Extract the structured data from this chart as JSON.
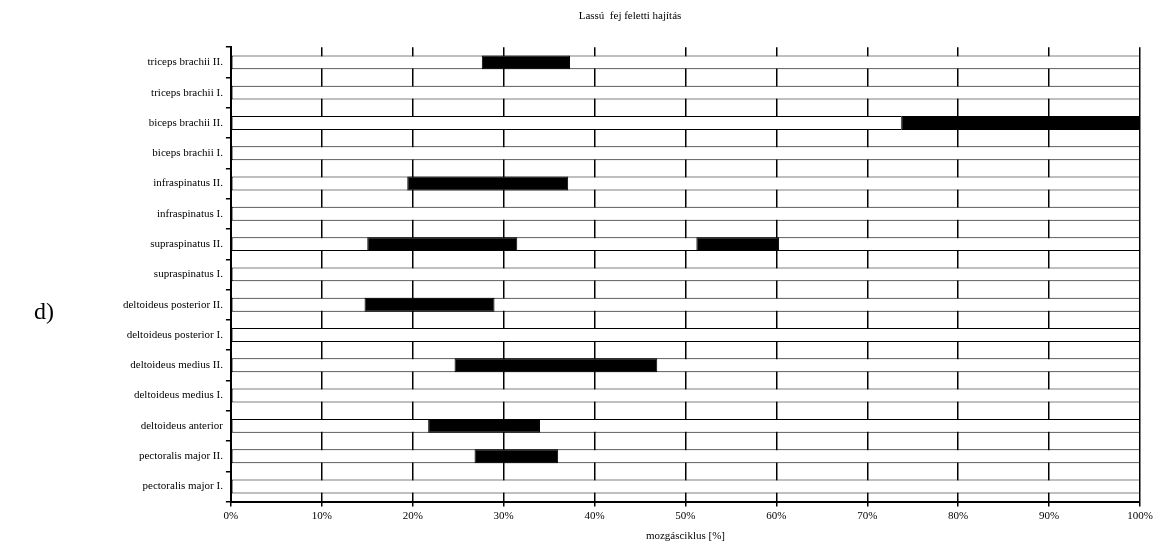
{
  "chart_data": {
    "type": "bar",
    "orientation": "horizontal",
    "title": "Lassú  fej feletti hajítás",
    "xlabel": "mozgásciklus [%]",
    "annotations": [
      "d)"
    ],
    "categories": [
      "triceps brachii II.",
      "triceps brachii I.",
      "biceps brachii II.",
      "biceps brachii I.",
      "infraspinatus II.",
      "infraspinatus I.",
      "supraspinatus II.",
      "supraspinatus I.",
      "deltoideus posterior II.",
      "deltoideus posterior I.",
      "deltoideus medius II.",
      "deltoideus medius I.",
      "deltoideus anterior",
      "pectoralis major II.",
      "pectoralis major I."
    ],
    "series": [
      {
        "color": "#ffffff",
        "base": [
          0,
          0,
          0,
          0,
          0,
          0,
          0,
          0,
          0,
          0,
          0,
          0,
          0,
          0,
          0
        ],
        "values": [
          100,
          100,
          73.8,
          100,
          100,
          100,
          100,
          100,
          100,
          100,
          100,
          100,
          100,
          100,
          100
        ]
      },
      {
        "color": "#000000",
        "base": [
          27.6,
          null,
          73.8,
          null,
          19.4,
          null,
          15.0,
          null,
          14.7,
          null,
          24.6,
          null,
          21.7,
          26.8,
          null
        ],
        "values": [
          9.7,
          null,
          26.2,
          null,
          17.7,
          null,
          16.5,
          null,
          14.3,
          null,
          22.3,
          null,
          12.3,
          9.2,
          null
        ]
      },
      {
        "color": "#000000",
        "base": [
          null,
          null,
          null,
          null,
          null,
          null,
          51.2,
          null,
          null,
          null,
          null,
          null,
          null,
          null,
          null
        ],
        "values": [
          null,
          null,
          null,
          null,
          null,
          null,
          9.1,
          null,
          null,
          null,
          null,
          null,
          null,
          null,
          null
        ]
      }
    ],
    "xlim": [
      0,
      100
    ],
    "xticks": [
      {
        "value": 0,
        "label": "0%"
      },
      {
        "value": 10,
        "label": "10%"
      },
      {
        "value": 20,
        "label": "20%"
      },
      {
        "value": 30,
        "label": "30%"
      },
      {
        "value": 40,
        "label": "40%"
      },
      {
        "value": 50,
        "label": "50%"
      },
      {
        "value": 60,
        "label": "60%"
      },
      {
        "value": 70,
        "label": "70%"
      },
      {
        "value": 80,
        "label": "80%"
      },
      {
        "value": 90,
        "label": "90%"
      },
      {
        "value": 100,
        "label": "100%"
      }
    ],
    "grid": "x",
    "legend": false
  }
}
